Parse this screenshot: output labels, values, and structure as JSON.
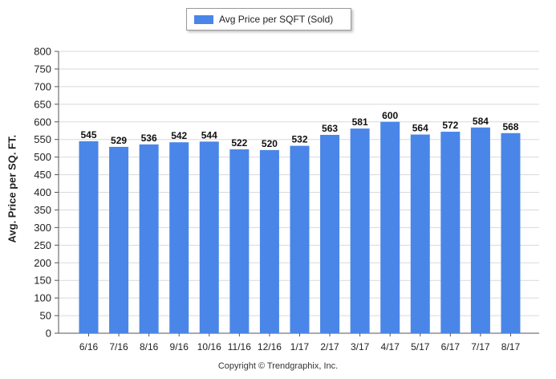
{
  "chart_data": {
    "type": "bar",
    "categories": [
      "6/16",
      "7/16",
      "8/16",
      "9/16",
      "10/16",
      "11/16",
      "12/16",
      "1/17",
      "2/17",
      "3/17",
      "4/17",
      "5/17",
      "6/17",
      "7/17",
      "8/17"
    ],
    "series": [
      {
        "name": "Avg Price per SQFT (Sold)",
        "values": [
          545,
          529,
          536,
          542,
          544,
          522,
          520,
          532,
          563,
          581,
          600,
          564,
          572,
          584,
          568
        ],
        "color": "#4a86e8"
      }
    ],
    "title": "",
    "xlabel": "",
    "ylabel": "Avg. Price per SQ. FT.",
    "ylim": [
      0,
      800
    ],
    "yticks": [
      0,
      50,
      100,
      150,
      200,
      250,
      300,
      350,
      400,
      450,
      500,
      550,
      600,
      650,
      700,
      750,
      800
    ],
    "grid": true,
    "legend": "top-center",
    "data_labels": true
  },
  "footer": {
    "copyright": "Copyright © Trendgraphix, Inc."
  }
}
